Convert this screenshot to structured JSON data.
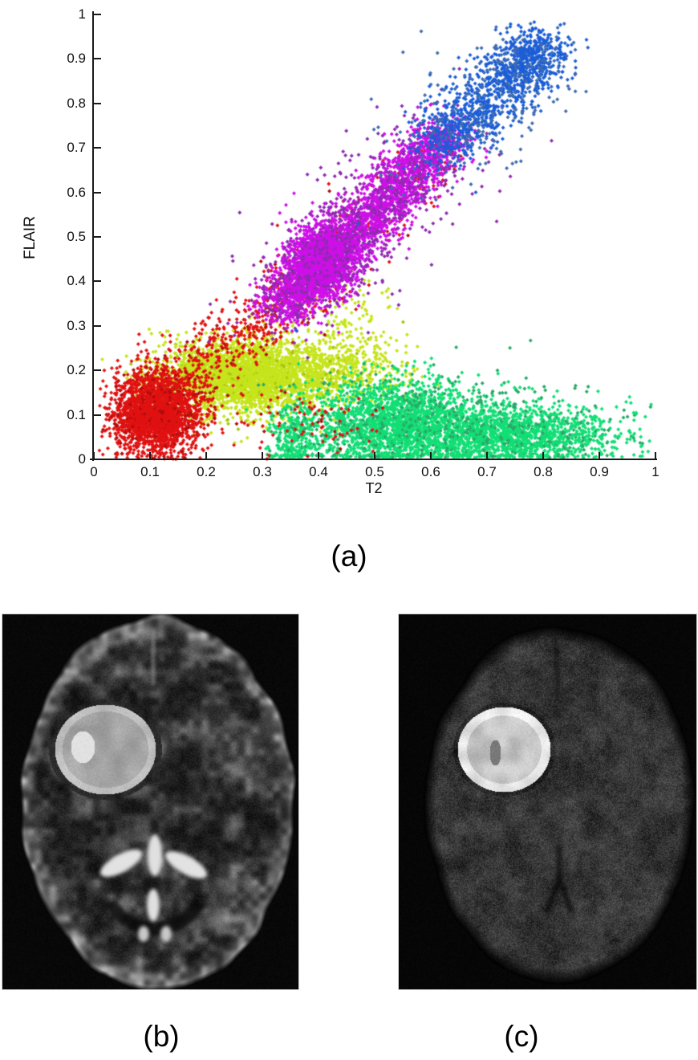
{
  "figure": {
    "panel_a_label": "(a)",
    "panel_b_label": "(b)",
    "panel_c_label": "(c)"
  },
  "chart_data": {
    "type": "scatter",
    "title": "",
    "xlabel": "T2",
    "ylabel": "FLAIR",
    "xlim": [
      0,
      1
    ],
    "ylim": [
      0,
      1
    ],
    "xticks": [
      "0",
      "0.1",
      "0.2",
      "0.3",
      "0.4",
      "0.5",
      "0.6",
      "0.7",
      "0.8",
      "0.9",
      "1"
    ],
    "yticks": [
      "0",
      "0.1",
      "0.2",
      "0.3",
      "0.4",
      "0.5",
      "0.6",
      "0.7",
      "0.8",
      "0.9",
      "1"
    ],
    "grid": false,
    "legend": false,
    "marker": "diamond",
    "marker_size_px": 5,
    "clusters": [
      {
        "name": "cluster-chartreuse",
        "color": "#c6e41c",
        "alt_color": "#a9c511",
        "alt_frac": 0.05,
        "center": [
          0.27,
          0.19
        ],
        "shapes": [
          {
            "kind": "blob",
            "cx": 0.265,
            "cy": 0.185,
            "sx": 0.075,
            "sy": 0.042,
            "n": 3000
          },
          {
            "kind": "blob",
            "cx": 0.44,
            "cy": 0.19,
            "sx": 0.065,
            "sy": 0.035,
            "n": 450
          },
          {
            "kind": "blob",
            "cx": 0.45,
            "cy": 0.29,
            "sx": 0.055,
            "sy": 0.045,
            "n": 130
          },
          {
            "kind": "blob",
            "cx": 0.47,
            "cy": 0.37,
            "sx": 0.03,
            "sy": 0.03,
            "n": 12
          }
        ]
      },
      {
        "name": "cluster-green",
        "color": "#12df75",
        "alt_color": "#2aa968",
        "alt_frac": 0.1,
        "center": [
          0.62,
          0.07
        ],
        "shapes": [
          {
            "kind": "blob",
            "cx": 0.54,
            "cy": 0.08,
            "sx": 0.08,
            "sy": 0.05,
            "n": 2000,
            "ymin": 0.004,
            "ymax": 0.23
          },
          {
            "kind": "blob",
            "cx": 0.75,
            "cy": 0.055,
            "sx": 0.1,
            "sy": 0.033,
            "n": 1600,
            "ymin": 0.004,
            "ymax": 0.2
          },
          {
            "kind": "blob",
            "cx": 0.36,
            "cy": 0.05,
            "sx": 0.022,
            "sy": 0.04,
            "n": 300,
            "ymin": 0.004
          },
          {
            "kind": "blob",
            "cx": 0.62,
            "cy": 0.1,
            "sx": 0.14,
            "sy": 0.05,
            "n": 220,
            "alt": true,
            "ymin": 0.004
          }
        ]
      },
      {
        "name": "cluster-red",
        "color": "#e11212",
        "alt_color": "#b00d0d",
        "alt_frac": 0.12,
        "center": [
          0.11,
          0.1
        ],
        "shapes": [
          {
            "kind": "blob",
            "cx": 0.112,
            "cy": 0.105,
            "sx": 0.038,
            "sy": 0.045,
            "n": 2400
          },
          {
            "kind": "line",
            "x1": 0.15,
            "y1": 0.18,
            "x2": 0.4,
            "y2": 0.43,
            "jitter": 0.035,
            "n": 500
          },
          {
            "kind": "blob",
            "cx": 0.38,
            "cy": 0.08,
            "sx": 0.07,
            "sy": 0.035,
            "n": 80
          },
          {
            "kind": "line",
            "x1": 0.45,
            "y1": 0.48,
            "x2": 0.62,
            "y2": 0.7,
            "jitter": 0.04,
            "n": 120
          }
        ]
      },
      {
        "name": "cluster-magenta",
        "color": "#cf10e8",
        "alt_color": "#8e2bb0",
        "alt_frac": 0.14,
        "center": [
          0.42,
          0.48
        ],
        "shapes": [
          {
            "kind": "line",
            "x1": 0.33,
            "y1": 0.33,
            "x2": 0.63,
            "y2": 0.73,
            "jitter": 0.028,
            "n": 2800
          },
          {
            "kind": "blob",
            "cx": 0.4,
            "cy": 0.445,
            "sx": 0.028,
            "sy": 0.042,
            "n": 1500
          },
          {
            "kind": "line",
            "x1": 0.33,
            "y1": 0.33,
            "x2": 0.63,
            "y2": 0.73,
            "jitter": 0.06,
            "n": 500,
            "alt": true
          }
        ]
      },
      {
        "name": "cluster-blue",
        "color": "#1b5ed8",
        "alt_color": "#3e6cb2",
        "alt_frac": 0.15,
        "center": [
          0.72,
          0.83
        ],
        "shapes": [
          {
            "kind": "line",
            "x1": 0.61,
            "y1": 0.7,
            "x2": 0.8,
            "y2": 0.92,
            "jitter": 0.033,
            "n": 1000
          },
          {
            "kind": "blob",
            "cx": 0.78,
            "cy": 0.9,
            "sx": 0.035,
            "sy": 0.035,
            "n": 250
          },
          {
            "kind": "line",
            "x1": 0.6,
            "y1": 0.68,
            "x2": 0.8,
            "y2": 0.93,
            "jitter": 0.06,
            "n": 200,
            "alt": true
          },
          {
            "kind": "points",
            "pts": [
              [
                0.47,
                0.53
              ],
              [
                0.36,
                0.29
              ],
              [
                0.53,
                0.61
              ],
              [
                0.68,
                0.6
              ]
            ]
          }
        ]
      }
    ]
  },
  "images": {
    "b": {
      "alt": "Axial T2-weighted brain MRI with a large bright round tumor in the frontal lobe"
    },
    "c": {
      "alt": "Axial diffusion-weighted brain MRI, dark and noisy, with the same tumor appearing bright"
    }
  }
}
